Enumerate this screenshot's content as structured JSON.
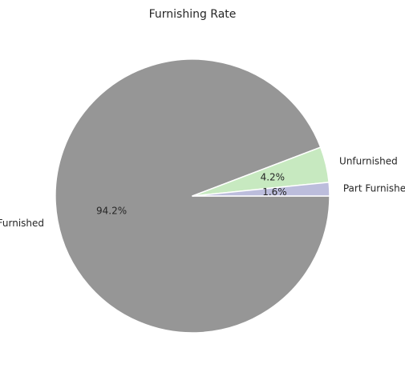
{
  "chart_data": {
    "type": "pie",
    "title": "Furnishing Rate",
    "categories": [
      "Furnished",
      "Unfurnished",
      "Part Furnished"
    ],
    "values": [
      94.2,
      4.2,
      1.6
    ],
    "labels": [
      "94.2%",
      "4.2%",
      "1.6%"
    ],
    "colors": [
      "#969696",
      "#c7e9c0",
      "#bcbddc"
    ],
    "edge_color": "#ffffff",
    "start_angle": 0,
    "direction": "clockwise",
    "legend": "none"
  }
}
